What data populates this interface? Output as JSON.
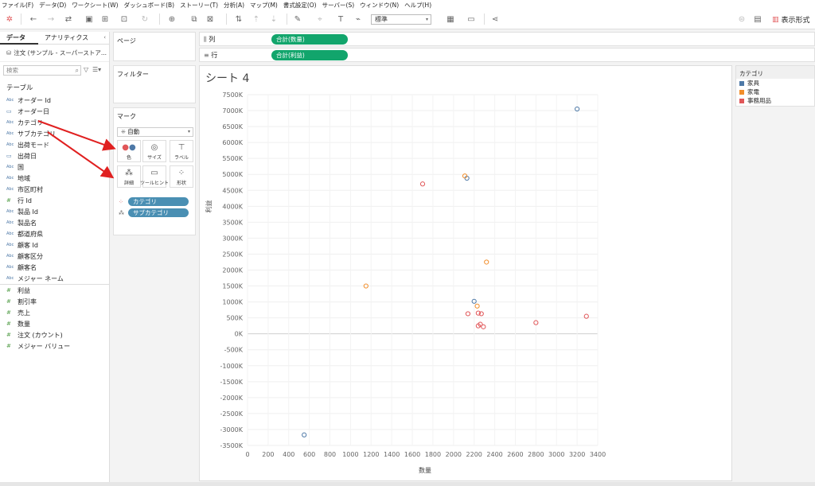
{
  "menu": [
    "ファイル(F)",
    "データ(D)",
    "ワークシート(W)",
    "ダッシュボード(B)",
    "ストーリー(T)",
    "分析(A)",
    "マップ(M)",
    "書式設定(O)",
    "サーバー(S)",
    "ウィンドウ(N)",
    "ヘルプ(H)"
  ],
  "toolbar": {
    "fit_value": "標準",
    "show_me_label": "表示形式"
  },
  "data_pane": {
    "tabs": [
      "データ",
      "アナリティクス"
    ],
    "datasource": "注文 (サンプル - スーパーストア...",
    "search_placeholder": "検索",
    "section_title": "テーブル",
    "dimensions": [
      {
        "label": "オーダー Id",
        "type": "abc"
      },
      {
        "label": "オーダー日",
        "type": "date"
      },
      {
        "label": "カテゴリ",
        "type": "abc"
      },
      {
        "label": "サブカテゴリ",
        "type": "abc"
      },
      {
        "label": "出荷モード",
        "type": "abc"
      },
      {
        "label": "出荷日",
        "type": "date"
      },
      {
        "label": "国",
        "type": "abc"
      },
      {
        "label": "地域",
        "type": "abc"
      },
      {
        "label": "市区町村",
        "type": "abc"
      },
      {
        "label": "行 Id",
        "type": "num"
      },
      {
        "label": "製品 Id",
        "type": "abc"
      },
      {
        "label": "製品名",
        "type": "abc"
      },
      {
        "label": "都道府県",
        "type": "abc"
      },
      {
        "label": "顧客 Id",
        "type": "abc"
      },
      {
        "label": "顧客区分",
        "type": "abc"
      },
      {
        "label": "顧客名",
        "type": "abc"
      },
      {
        "label": "メジャー ネーム",
        "type": "abc"
      }
    ],
    "measures": [
      "利益",
      "割引率",
      "売上",
      "数量",
      "注文 (カウント)",
      "メジャー バリュー"
    ]
  },
  "cards": {
    "pages_title": "ページ",
    "filters_title": "フィルター",
    "marks_title": "マーク",
    "marks_type": "自動",
    "mark_buttons": [
      "色",
      "サイズ",
      "ラベル",
      "詳細",
      "ツールヒント",
      "形状"
    ],
    "mark_fields": [
      "カテゴリ",
      "サブカテゴリ"
    ]
  },
  "shelves": {
    "columns_label": "列",
    "columns_pill": "合計(数量)",
    "rows_label": "行",
    "rows_pill": "合計(利益)"
  },
  "sheet": {
    "title": "シート 4"
  },
  "legend": {
    "title": "カテゴリ",
    "items": [
      {
        "label": "家具",
        "color": "#4e79a7"
      },
      {
        "label": "家電",
        "color": "#f28e2b"
      },
      {
        "label": "事務用品",
        "color": "#e15759"
      }
    ]
  },
  "chart_data": {
    "type": "scatter",
    "xlabel": "数量",
    "ylabel": "利益",
    "xlim": [
      0,
      3400
    ],
    "ylim": [
      -3500000,
      7500000
    ],
    "xticks": [
      0,
      200,
      400,
      600,
      800,
      1000,
      1200,
      1400,
      1600,
      1800,
      2000,
      2200,
      2400,
      2600,
      2800,
      3000,
      3200,
      3400
    ],
    "yticks": [
      7500000,
      7000000,
      6500000,
      6000000,
      5500000,
      5000000,
      4500000,
      4000000,
      3500000,
      3000000,
      2500000,
      2000000,
      1500000,
      1000000,
      500000,
      0,
      -500000,
      -1000000,
      -1500000,
      -2000000,
      -2500000,
      -3000000,
      -3500000
    ],
    "ytick_labels": [
      "7500K",
      "7000K",
      "6500K",
      "6000K",
      "5500K",
      "5000K",
      "4500K",
      "4000K",
      "3500K",
      "3000K",
      "2500K",
      "2000K",
      "1500K",
      "1000K",
      "500K",
      "0K",
      "-500K",
      "-1000K",
      "-1500K",
      "-2000K",
      "-2500K",
      "-3000K",
      "-3500K"
    ],
    "series": [
      {
        "name": "家具",
        "color": "#4e79a7",
        "points": [
          [
            3200,
            7050000
          ],
          [
            2130,
            4880000
          ],
          [
            2200,
            1020000
          ],
          [
            550,
            -3170000
          ]
        ]
      },
      {
        "name": "家電",
        "color": "#f28e2b",
        "points": [
          [
            2110,
            4950000
          ],
          [
            2320,
            2250000
          ],
          [
            1150,
            1500000
          ],
          [
            2230,
            870000
          ]
        ]
      },
      {
        "name": "事務用品",
        "color": "#e15759",
        "points": [
          [
            1700,
            4700000
          ],
          [
            2140,
            630000
          ],
          [
            2240,
            650000
          ],
          [
            2270,
            630000
          ],
          [
            2240,
            250000
          ],
          [
            2260,
            300000
          ],
          [
            2290,
            220000
          ],
          [
            2800,
            350000
          ],
          [
            3290,
            550000
          ]
        ]
      }
    ]
  }
}
